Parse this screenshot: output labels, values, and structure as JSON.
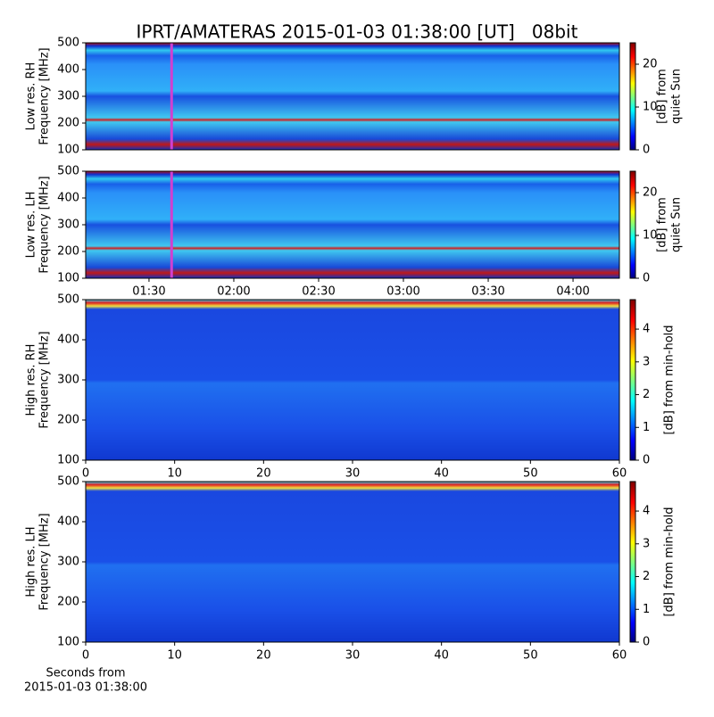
{
  "chart_data": [
    {
      "type": "spectrogram",
      "title": "IPRT/AMATERAS 2015-01-03 01:38:00 [UT]   08bit",
      "ylabel": [
        "Low res. RH",
        "Frequency [MHz]"
      ],
      "ylim": [
        100,
        500
      ],
      "yticks": [
        100,
        200,
        300,
        400,
        500
      ],
      "xlim": [
        67.6,
        256.4
      ],
      "marker": {
        "x": 98,
        "color": "#d040d0"
      },
      "clim": [
        0,
        25
      ],
      "cticks": [
        0,
        10,
        20
      ],
      "clabel": [
        "[dB] from",
        "quiet Sun"
      ],
      "colormap": "jet",
      "resolution": "low"
    },
    {
      "type": "spectrogram",
      "ylabel": [
        "Low res. LH",
        "Frequency [MHz]"
      ],
      "ylim": [
        100,
        500
      ],
      "yticks": [
        100,
        200,
        300,
        400,
        500
      ],
      "xlim": [
        67.6,
        256.4
      ],
      "marker": {
        "x": 98,
        "color": "#d040d0"
      },
      "xticks": [
        {
          "value": 90,
          "label": "01:30"
        },
        {
          "value": 120,
          "label": "02:00"
        },
        {
          "value": 150,
          "label": "02:30"
        },
        {
          "value": 180,
          "label": "03:00"
        },
        {
          "value": 210,
          "label": "03:30"
        },
        {
          "value": 240,
          "label": "04:00"
        }
      ],
      "clim": [
        0,
        25
      ],
      "cticks": [
        0,
        10,
        20
      ],
      "clabel": [
        "[dB] from",
        "quiet Sun"
      ],
      "colormap": "jet",
      "resolution": "low"
    },
    {
      "type": "spectrogram",
      "ylabel": [
        "High res. RH",
        "Frequency [MHz]"
      ],
      "ylim": [
        100,
        500
      ],
      "yticks": [
        100,
        200,
        300,
        400,
        500
      ],
      "xlim": [
        0,
        60
      ],
      "xticks": [
        0,
        10,
        20,
        30,
        40,
        50,
        60
      ],
      "clim": [
        0,
        4.9
      ],
      "cticks": [
        0,
        1,
        2,
        3,
        4
      ],
      "clabel": [
        "[dB] from min-hold"
      ],
      "colormap": "jet",
      "resolution": "high"
    },
    {
      "type": "spectrogram",
      "ylabel": [
        "High res. LH",
        "Frequency [MHz]"
      ],
      "ylim": [
        100,
        500
      ],
      "yticks": [
        100,
        200,
        300,
        400,
        500
      ],
      "xlim": [
        0,
        60
      ],
      "xticks": [
        0,
        10,
        20,
        30,
        40,
        50,
        60
      ],
      "xlabel": [
        "Seconds from",
        "2015-01-03 01:38:00"
      ],
      "clim": [
        0,
        4.9
      ],
      "cticks": [
        0,
        1,
        2,
        3,
        4
      ],
      "clabel": [
        "[dB] from min-hold"
      ],
      "colormap": "jet",
      "resolution": "high"
    }
  ]
}
